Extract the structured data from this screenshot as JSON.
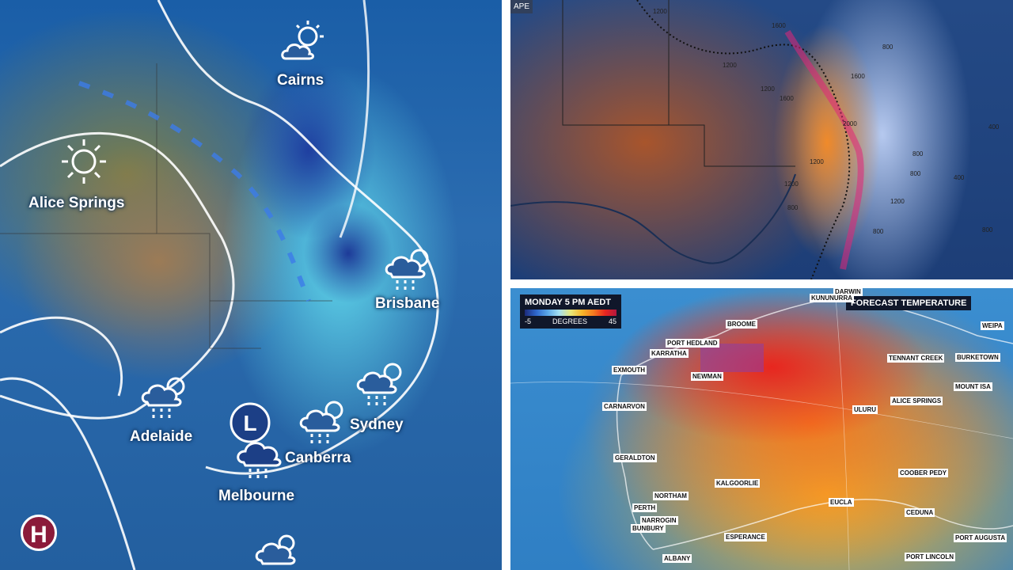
{
  "left_map": {
    "cities": [
      {
        "name": "Cairns",
        "icon": "sun-behind-cloud-icon"
      },
      {
        "name": "Alice Springs",
        "icon": "sun-icon"
      },
      {
        "name": "Brisbane",
        "icon": "rain-cloud-icon"
      },
      {
        "name": "Adelaide",
        "icon": "rain-cloud-icon"
      },
      {
        "name": "Sydney",
        "icon": "rain-cloud-icon"
      },
      {
        "name": "Canberra",
        "icon": "rain-cloud-icon"
      },
      {
        "name": "Melbourne",
        "icon": "low-pressure-rain-icon"
      }
    ],
    "low_symbol": "L",
    "high_symbol": "H"
  },
  "top_right_map": {
    "label": "APE",
    "contours": [
      "1200",
      "1600",
      "1200",
      "800",
      "1600",
      "2000",
      "1200",
      "800",
      "800",
      "1200",
      "400",
      "800",
      "1600",
      "1200",
      "1200",
      "800",
      "400",
      "800"
    ]
  },
  "bottom_right_map": {
    "header_title": "MONDAY 5 PM AEDT",
    "scale_min": "-5",
    "scale_label": "DEGREES",
    "scale_max": "45",
    "title": "FORECAST TEMPERATURE",
    "labels": [
      "DARWIN",
      "KUNUNURRA",
      "BROOME",
      "WEIPA",
      "PORT HEDLAND",
      "KARRATHA",
      "TENNANT CREEK",
      "BURKETOWN",
      "EXMOUTH",
      "NEWMAN",
      "MOUNT ISA",
      "CARNARVON",
      "ULURU",
      "ALICE SPRINGS",
      "GERALDTON",
      "COOBER PEDY",
      "KALGOORLIE",
      "NORTHAM",
      "PERTH",
      "EUCLA",
      "NARROGIN",
      "CEDUNA",
      "BUNBURY",
      "ESPERANCE",
      "PORT AUGUSTA",
      "ALBANY",
      "PORT LINCOLN"
    ]
  }
}
